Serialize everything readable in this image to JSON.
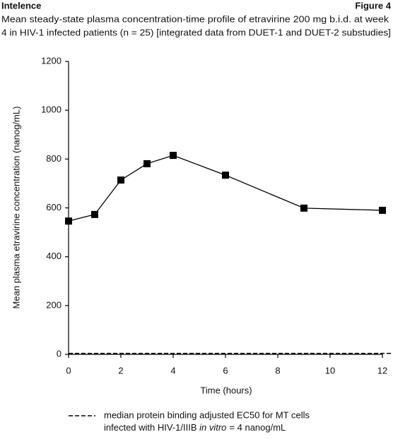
{
  "header": {
    "brand": "Intelence",
    "figure": "Figure 4"
  },
  "chart_data": {
    "type": "line",
    "title_lines": [
      "Mean steady-state plasma concentration-time profile of etravirine 200 mg b.i.d. at week",
      "4 in HIV-1 infected patients (n = 25) [integrated data from DUET-1 and DUET-2 substudies]"
    ],
    "x_label": "Time (hours)",
    "y_label": "Mean plasma etravirine concentration (nanog/mL)",
    "x": [
      0,
      1,
      2,
      3,
      4,
      6,
      9,
      12
    ],
    "series": [
      {
        "color": "#000000",
        "marker": "square",
        "values": [
          546,
          573,
          714,
          781,
          815,
          734,
          599,
          590
        ]
      }
    ],
    "reference_lines": [
      {
        "value": 4,
        "style": "dashed",
        "color": "#000000",
        "label_line1": "median protein binding adjusted EC50 for MT cells",
        "label_line2": {
          "text": "infected with HIV-1/IIIB ",
          "italic": "in vitro",
          "after": "= 4 nanog/mL"
        }
      }
    ],
    "xlim": [
      0,
      12
    ],
    "xticks": [
      0,
      2,
      4,
      6,
      8,
      10,
      12
    ],
    "ylim": [
      0,
      1200
    ],
    "yticks": [
      0,
      200,
      400,
      600,
      800,
      1000,
      1200
    ],
    "grid": false
  }
}
